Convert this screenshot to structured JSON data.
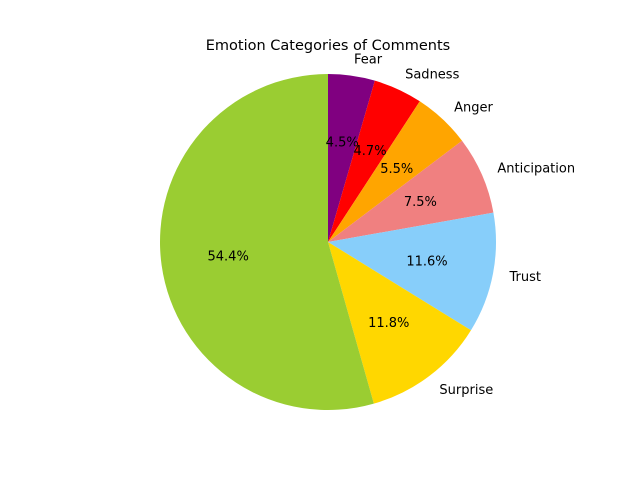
{
  "chart_data": {
    "type": "pie",
    "title": "Emotion Categories of Comments",
    "categories": [
      "Fear",
      "Sadness",
      "Anger",
      "Anticipation",
      "Trust",
      "Surprise",
      ""
    ],
    "values": [
      4.5,
      4.7,
      5.5,
      7.5,
      11.6,
      11.8,
      54.4
    ],
    "value_labels": [
      "4.5%",
      "4.7%",
      "5.5%",
      "7.5%",
      "11.6%",
      "11.8%",
      "54.4%"
    ],
    "colors": [
      "#800080",
      "#ff0000",
      "#ffa500",
      "#f08080",
      "#87cefa",
      "#ffd700",
      "#9acd32"
    ],
    "start_angle_deg": 90,
    "direction": "clockwise",
    "legend": "none"
  }
}
